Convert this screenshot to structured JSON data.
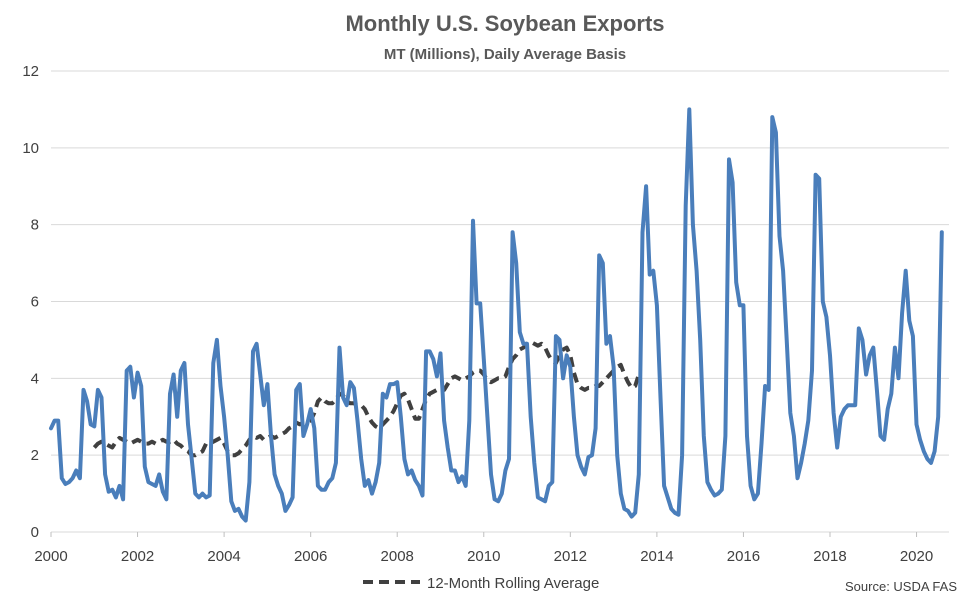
{
  "chart_data": {
    "type": "line",
    "title": "Monthly U.S. Soybean Exports",
    "subtitle": "MT (Millions), Daily Average Basis",
    "xlabel": "",
    "ylabel": "",
    "source": "Source: USDA FAS",
    "x_start_year": 2000,
    "x_end_year": 2020.75,
    "xlim": [
      2000,
      2020.75
    ],
    "ylim": [
      0,
      12
    ],
    "x_ticks": [
      "2000",
      "2002",
      "2004",
      "2006",
      "2008",
      "2010",
      "2012",
      "2014",
      "2016",
      "2018",
      "2020"
    ],
    "y_ticks": [
      "0",
      "2",
      "4",
      "6",
      "8",
      "10",
      "12"
    ],
    "grid": true,
    "legend": {
      "placement": "bottom-center",
      "entries": [
        "12-Month Rolling Average"
      ]
    },
    "series": [
      {
        "color": "#4a7ebb",
        "style": "solid",
        "values": [
          2.7,
          2.9,
          2.9,
          1.4,
          1.25,
          1.3,
          1.4,
          1.6,
          1.4,
          3.7,
          3.4,
          2.8,
          2.75,
          3.7,
          3.5,
          1.5,
          1.05,
          1.1,
          0.9,
          1.2,
          0.85,
          4.2,
          4.3,
          3.5,
          4.15,
          3.8,
          1.7,
          1.3,
          1.25,
          1.2,
          1.5,
          1.05,
          0.85,
          3.6,
          4.1,
          3.0,
          4.2,
          4.4,
          2.8,
          1.9,
          1.0,
          0.9,
          1.0,
          0.9,
          0.95,
          4.4,
          5.0,
          3.8,
          3.0,
          2.0,
          0.8,
          0.55,
          0.6,
          0.4,
          0.3,
          1.3,
          4.7,
          4.9,
          4.1,
          3.3,
          3.85,
          2.5,
          1.5,
          1.2,
          1.0,
          0.55,
          0.7,
          0.9,
          3.7,
          3.85,
          2.5,
          2.8,
          3.2,
          2.7,
          1.2,
          1.1,
          1.1,
          1.3,
          1.4,
          1.8,
          4.8,
          3.5,
          3.3,
          3.9,
          3.75,
          2.9,
          1.9,
          1.2,
          1.35,
          1.0,
          1.3,
          1.8,
          3.6,
          3.5,
          3.85,
          3.85,
          3.9,
          3.0,
          1.9,
          1.5,
          1.6,
          1.35,
          1.2,
          0.95,
          4.7,
          4.7,
          4.5,
          4.05,
          4.65,
          2.9,
          2.2,
          1.6,
          1.6,
          1.3,
          1.45,
          1.2,
          2.9,
          8.1,
          5.95,
          5.95,
          4.5,
          3.0,
          1.5,
          0.85,
          0.8,
          1.0,
          1.6,
          1.9,
          7.8,
          7.0,
          5.2,
          4.9,
          4.9,
          3.0,
          1.8,
          0.9,
          0.85,
          0.8,
          1.2,
          1.3,
          5.1,
          5.0,
          4.0,
          4.6,
          4.3,
          3.0,
          2.0,
          1.7,
          1.5,
          1.95,
          2.0,
          2.7,
          7.2,
          7.0,
          4.9,
          5.1,
          4.3,
          2.0,
          1.0,
          0.6,
          0.55,
          0.4,
          0.5,
          1.5,
          7.8,
          9.0,
          6.7,
          6.8,
          5.9,
          3.5,
          1.2,
          0.9,
          0.6,
          0.5,
          0.45,
          2.0,
          8.5,
          11.0,
          8.0,
          6.8,
          5.0,
          2.5,
          1.3,
          1.1,
          0.95,
          1.0,
          1.1,
          2.5,
          9.7,
          9.1,
          6.5,
          5.9,
          5.9,
          2.5,
          1.2,
          0.85,
          1.0,
          2.3,
          3.8,
          3.7,
          10.8,
          10.4,
          7.7,
          6.8,
          5.0,
          3.1,
          2.5,
          1.4,
          1.8,
          2.3,
          2.9,
          4.2,
          9.3,
          9.2,
          6.0,
          5.6,
          4.6,
          3.1,
          2.2,
          3.0,
          3.2,
          3.3,
          3.3,
          3.3,
          5.3,
          5.0,
          4.1,
          4.6,
          4.8,
          3.7,
          2.5,
          2.4,
          3.2,
          3.6,
          4.8,
          4.0,
          5.7,
          6.8,
          5.5,
          5.1,
          2.8,
          2.4,
          2.1,
          1.9,
          1.8,
          2.1,
          3.0,
          7.8
        ]
      },
      {
        "name": "12-Month Rolling Average",
        "color": "#404040",
        "style": "dashed",
        "start_year": 2001,
        "values": [
          2.2,
          2.3,
          2.35,
          2.3,
          2.25,
          2.2,
          2.35,
          2.45,
          2.4,
          2.35,
          2.3,
          2.35,
          2.4,
          2.35,
          2.3,
          2.3,
          2.35,
          2.3,
          2.35,
          2.4,
          2.35,
          2.35,
          2.4,
          2.3,
          2.25,
          2.15,
          2.1,
          2.0,
          2.0,
          2.05,
          2.1,
          2.3,
          2.3,
          2.35,
          2.4,
          2.45,
          2.3,
          2.1,
          2.0,
          2.0,
          2.05,
          2.15,
          2.25,
          2.4,
          2.5,
          2.45,
          2.5,
          2.4,
          2.45,
          2.5,
          2.45,
          2.5,
          2.55,
          2.6,
          2.7,
          2.75,
          2.85,
          2.8,
          2.85,
          2.85,
          2.9,
          3.1,
          3.4,
          3.5,
          3.4,
          3.35,
          3.35,
          3.45,
          3.6,
          3.55,
          3.4,
          3.35,
          3.35,
          3.3,
          3.3,
          3.2,
          3.0,
          2.85,
          2.75,
          2.7,
          2.8,
          2.9,
          3.0,
          3.15,
          3.35,
          3.55,
          3.6,
          3.45,
          3.2,
          2.95,
          2.95,
          3.2,
          3.45,
          3.6,
          3.65,
          3.7,
          3.7,
          3.7,
          3.85,
          4.0,
          4.05,
          4.0,
          3.95,
          4.0,
          4.05,
          4.15,
          4.2,
          4.2,
          4.1,
          3.95,
          3.9,
          3.95,
          4.0,
          4.0,
          4.05,
          4.3,
          4.5,
          4.6,
          4.75,
          4.8,
          4.9,
          4.95,
          4.9,
          4.85,
          4.9,
          4.8,
          4.6,
          4.45,
          4.4,
          4.6,
          4.75,
          4.8,
          4.6,
          4.15,
          3.85,
          3.75,
          3.7,
          3.75,
          3.75,
          3.8,
          3.8,
          3.9,
          4.0,
          4.1,
          4.2,
          4.3,
          4.35,
          4.1,
          3.9,
          3.75,
          3.8,
          4.1
        ]
      }
    ]
  }
}
